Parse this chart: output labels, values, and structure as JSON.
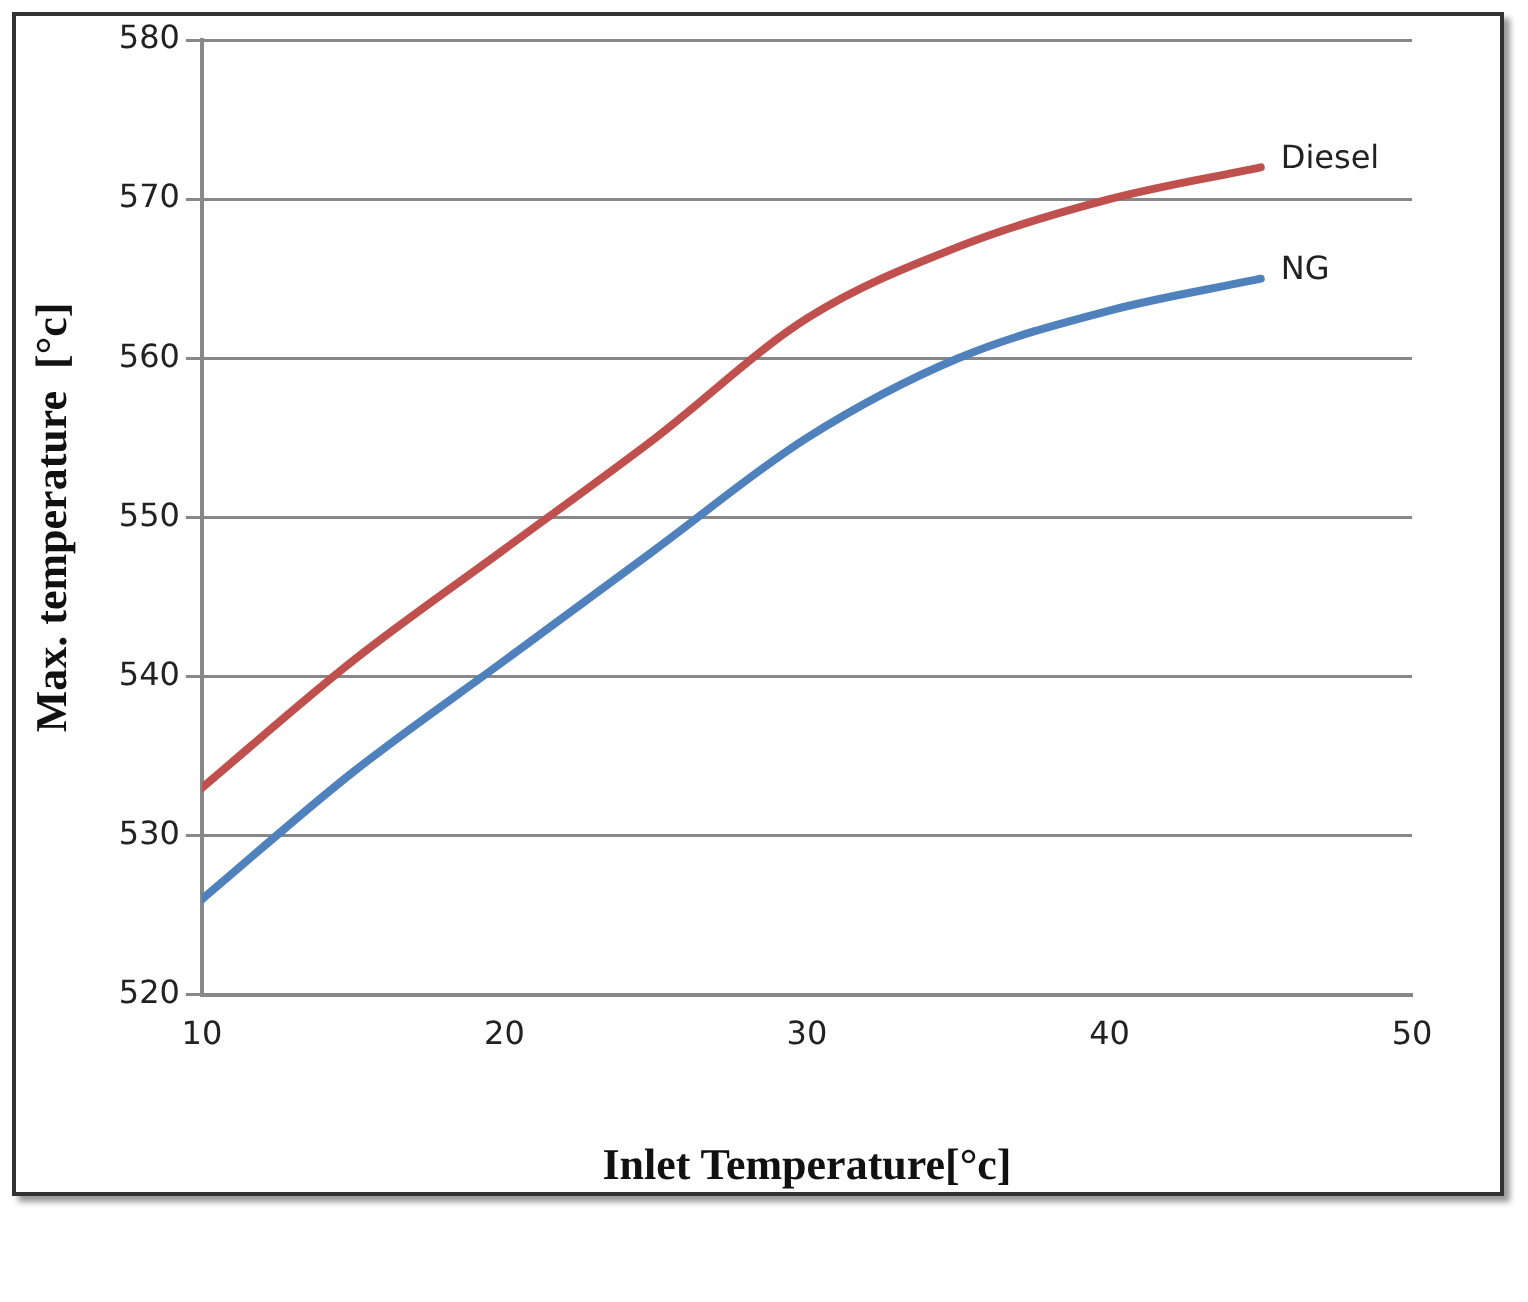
{
  "chart_data": {
    "type": "line",
    "xlabel": "Inlet Temperature[°c]",
    "ylabel": "Max. temperature  [°c]",
    "x": [
      10,
      15,
      20,
      25,
      30,
      35,
      40,
      45
    ],
    "series": [
      {
        "name": "Diesel",
        "color": "#c0504d",
        "values": [
          533,
          541,
          548,
          555,
          562.5,
          567,
          570,
          572
        ]
      },
      {
        "name": "NG",
        "color": "#4f81bd",
        "values": [
          526,
          534,
          541,
          548,
          555,
          560,
          563,
          565
        ]
      }
    ],
    "xlim": [
      10,
      50
    ],
    "xticks": [
      10,
      20,
      30,
      40,
      50
    ],
    "ylim": [
      520,
      580
    ],
    "yticks": [
      520,
      530,
      540,
      550,
      560,
      570,
      580
    ],
    "grid": "y",
    "legend": false,
    "marker": "none",
    "line_style": "solid"
  }
}
